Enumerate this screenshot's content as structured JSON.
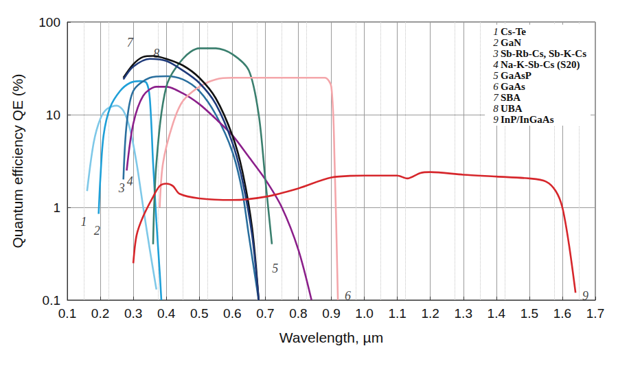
{
  "chart_data": {
    "type": "line",
    "x_label": "Wavelength, µm",
    "y_label": "Quantum efficiency QE (%)",
    "log": "y",
    "grid": true,
    "legend": "upper right",
    "xlim": [
      0.1,
      1.7
    ],
    "xticks": [
      0.1,
      0.2,
      0.3,
      0.4,
      0.5,
      0.6,
      0.7,
      0.8,
      0.9,
      {
        "value": 1,
        "label": "1.0"
      },
      1.1,
      1.2,
      1.3,
      1.4,
      1.5,
      1.6,
      1.7
    ],
    "ylim": [
      0.1,
      100
    ],
    "yticks": [
      0.1,
      1,
      10,
      100
    ],
    "series": [
      {
        "number": "1",
        "name": "Cs-Te",
        "color": "#7ec8e8",
        "x": [
          0.16,
          0.18,
          0.2,
          0.22,
          0.25,
          0.27,
          0.29,
          0.31,
          0.33,
          0.35,
          0.37
        ],
        "values": [
          1.5,
          5,
          9,
          11.5,
          12.5,
          11,
          7,
          3,
          1,
          0.35,
          0.13
        ]
      },
      {
        "number": "2",
        "name": "GaN",
        "color": "#1fa0d8",
        "x": [
          0.195,
          0.2,
          0.21,
          0.23,
          0.26,
          0.29,
          0.32,
          0.34,
          0.35,
          0.36,
          0.37,
          0.38,
          0.385
        ],
        "values": [
          0.85,
          2,
          6,
          12,
          18,
          22,
          23,
          22,
          15,
          3,
          0.7,
          0.2,
          0.1
        ]
      },
      {
        "number": "3",
        "name": "Sb-Rb-Cs, Sb-K-Cs",
        "color": "#2a6f9e",
        "x": [
          0.27,
          0.28,
          0.3,
          0.35,
          0.4,
          0.45,
          0.5,
          0.55,
          0.6,
          0.63,
          0.65,
          0.68
        ],
        "values": [
          2,
          8,
          18,
          25,
          26,
          24,
          18,
          10,
          4,
          1.5,
          0.5,
          0.1
        ]
      },
      {
        "number": "4",
        "name": "Na-K-Sb-Cs (S20)",
        "color": "#8b1f8a",
        "x": [
          0.28,
          0.3,
          0.33,
          0.37,
          0.4,
          0.45,
          0.5,
          0.55,
          0.6,
          0.65,
          0.7,
          0.75,
          0.8,
          0.84
        ],
        "values": [
          2.5,
          8,
          16,
          20,
          20,
          17,
          13,
          9,
          6,
          3.5,
          2,
          1,
          0.35,
          0.1
        ]
      },
      {
        "number": "5",
        "name": "GaAsP",
        "color": "#3a7f6e",
        "x": [
          0.36,
          0.37,
          0.4,
          0.45,
          0.5,
          0.55,
          0.6,
          0.65,
          0.68,
          0.7,
          0.72
        ],
        "values": [
          0.4,
          3,
          20,
          40,
          52,
          52,
          45,
          30,
          10,
          2,
          0.4
        ]
      },
      {
        "number": "6",
        "name": "GaAs",
        "color": "#f4a6aa",
        "x": [
          0.38,
          0.39,
          0.42,
          0.45,
          0.5,
          0.55,
          0.6,
          0.7,
          0.8,
          0.88,
          0.9,
          0.91,
          0.92
        ],
        "values": [
          1,
          3,
          8,
          14,
          20,
          24,
          25,
          25,
          25,
          25,
          20,
          3,
          0.1
        ]
      },
      {
        "number": "7",
        "name": "SBA",
        "color": "#111111",
        "x": [
          0.27,
          0.3,
          0.33,
          0.36,
          0.4,
          0.45,
          0.5,
          0.55,
          0.6,
          0.63,
          0.66,
          0.68
        ],
        "values": [
          25,
          35,
          42,
          43,
          40,
          34,
          25,
          15,
          6,
          2.5,
          0.6,
          0.1
        ]
      },
      {
        "number": "8",
        "name": "UBA",
        "color": "#1f3a7a",
        "x": [
          0.27,
          0.3,
          0.35,
          0.4,
          0.45,
          0.5,
          0.55,
          0.6,
          0.63,
          0.66,
          0.68
        ],
        "values": [
          24,
          33,
          40,
          38,
          30,
          22,
          13,
          5,
          2,
          0.5,
          0.1
        ]
      },
      {
        "number": "9",
        "name": "InP/InGaAs",
        "color": "#d6262b",
        "x": [
          0.3,
          0.31,
          0.33,
          0.36,
          0.38,
          0.4,
          0.42,
          0.44,
          0.5,
          0.6,
          0.7,
          0.8,
          0.9,
          1.0,
          1.1,
          1.13,
          1.17,
          1.2,
          1.3,
          1.4,
          1.5,
          1.55,
          1.58,
          1.6,
          1.62,
          1.64
        ],
        "values": [
          0.25,
          0.5,
          0.8,
          1.3,
          1.7,
          1.8,
          1.7,
          1.4,
          1.25,
          1.2,
          1.3,
          1.6,
          2.1,
          2.2,
          2.2,
          2.05,
          2.35,
          2.4,
          2.25,
          2.15,
          2.05,
          1.9,
          1.5,
          1.0,
          0.4,
          0.12
        ]
      }
    ],
    "annotations": [
      {
        "text": "1",
        "x": 0.15,
        "y": 0.7
      },
      {
        "text": "2",
        "x": 0.19,
        "y": 0.56
      },
      {
        "text": "3",
        "x": 0.265,
        "y": 1.6
      },
      {
        "text": "4",
        "x": 0.29,
        "y": 1.9
      },
      {
        "text": "7",
        "x": 0.29,
        "y": 60
      },
      {
        "text": "8",
        "x": 0.37,
        "y": 46
      },
      {
        "text": "5",
        "x": 0.73,
        "y": 0.22
      },
      {
        "text": "6",
        "x": 0.95,
        "y": 0.11
      },
      {
        "text": "9",
        "x": 1.67,
        "y": 0.11
      }
    ]
  }
}
